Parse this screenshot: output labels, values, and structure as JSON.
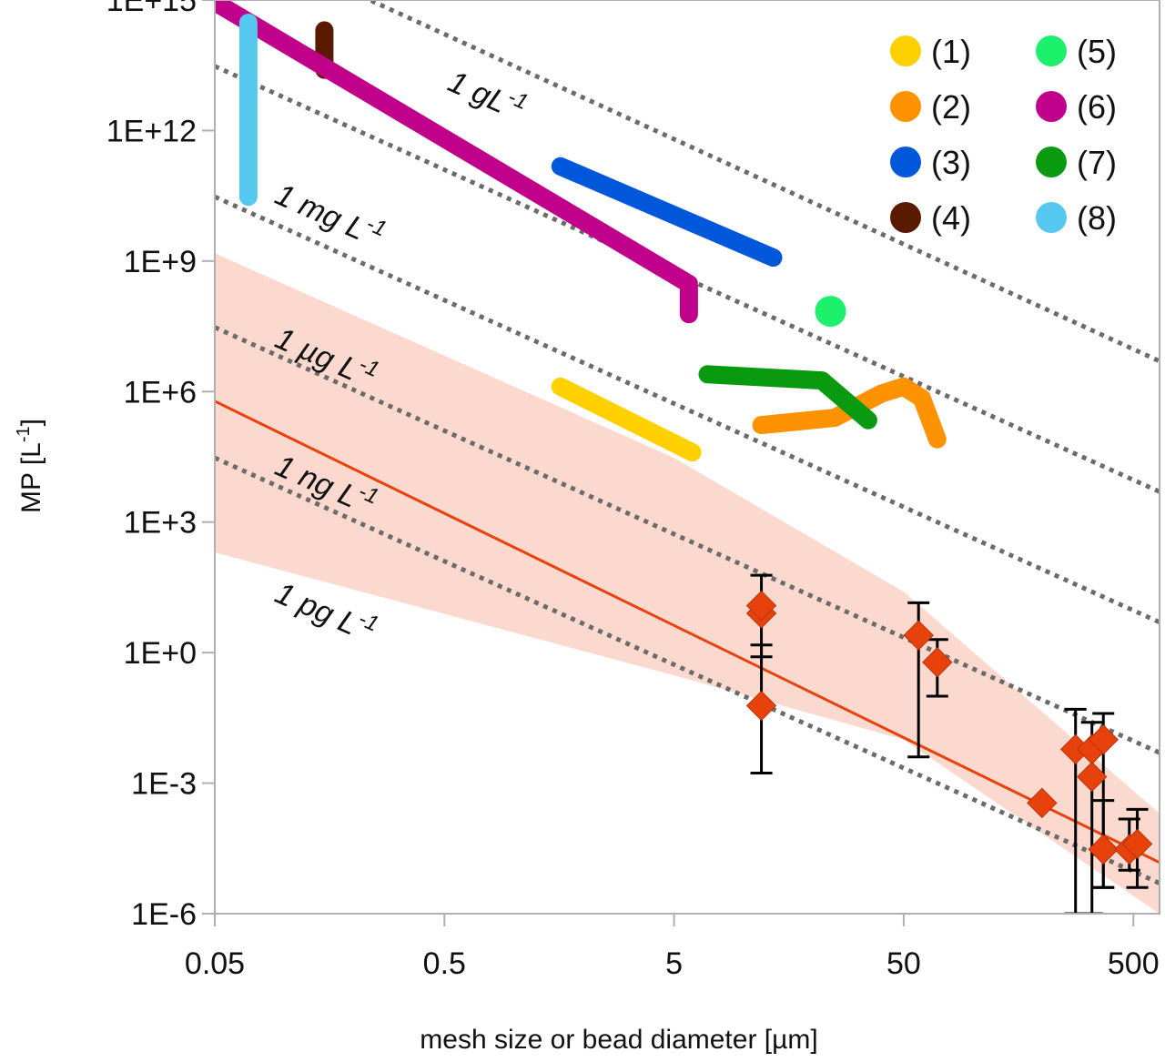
{
  "chart_data": {
    "type": "line",
    "title": "",
    "xlabel": "mesh size or bead diameter [µm]",
    "ylabel": "MP  [L",
    "ylabel_sup": "-1",
    "ylabel_end": "]",
    "x_scale": "log",
    "y_scale": "log",
    "xlim": [
      0.05,
      650
    ],
    "ylim": [
      1e-06,
      1000000000000000.0
    ],
    "x_ticks": [
      0.05,
      0.5,
      5,
      50,
      500
    ],
    "x_tick_labels": [
      "0.05",
      "0.5",
      "5",
      "50",
      "500"
    ],
    "y_ticks": [
      1e-06,
      0.001,
      1,
      1000.0,
      1000000.0,
      1000000000.0,
      1000000000000.0,
      1000000000000000.0
    ],
    "y_tick_labels": [
      "1E-6",
      "1E-3",
      "1E+0",
      "1E+3",
      "1E+6",
      "1E+9",
      "1E+12",
      "1E+15"
    ],
    "grid": false,
    "legend_position": "top-right",
    "series": [
      {
        "name": "(1)",
        "color": "#FFD000",
        "x": [
          1.6,
          6
        ],
        "y": [
          1300000.0,
          40000.0
        ]
      },
      {
        "name": "(2)",
        "color": "#FF9200",
        "x": [
          12,
          25,
          40,
          50,
          60,
          70
        ],
        "y": [
          170000.0,
          250000.0,
          900000.0,
          1300000.0,
          700000.0,
          80000.0
        ]
      },
      {
        "name": "(3)",
        "color": "#0057D9",
        "x": [
          1.6,
          13.5
        ],
        "y": [
          150000000000.0,
          1200000000.0
        ]
      },
      {
        "name": "(4)",
        "color": "#5A1A00",
        "x": [
          0.15,
          0.15
        ],
        "y": [
          200000000000000.0,
          25000000000000.0
        ]
      },
      {
        "name": "(5)",
        "color": "#1DF06B",
        "x": [
          24
        ],
        "y": [
          70000000.0
        ]
      },
      {
        "name": "(6)",
        "color": "#C0008A",
        "x": [
          0.05,
          5.8,
          5.8
        ],
        "y": [
          900000000000000.0,
          300000000.0,
          60000000.0
        ]
      },
      {
        "name": "(7)",
        "color": "#0A9A10",
        "x": [
          7,
          22,
          35
        ],
        "y": [
          2500000.0,
          1800000.0,
          220000.0
        ]
      },
      {
        "name": "(8)",
        "color": "#56C8F0",
        "x": [
          0.07,
          0.07
        ],
        "y": [
          300000000000000.0,
          30000000000.0
        ]
      }
    ],
    "measurements": [
      {
        "x": 12,
        "y": 8,
        "y_err_low": 0.8,
        "y_err_high": 60
      },
      {
        "x": 12,
        "y": 12
      },
      {
        "x": 12,
        "y": 0.06,
        "y_err_low": 0.0017,
        "y_err_high": 1.5
      },
      {
        "x": 58,
        "y": 2.5,
        "y_err_low": 0.004,
        "y_err_high": 14
      },
      {
        "x": 70,
        "y": 0.6,
        "y_err_low": 0.1,
        "y_err_high": 2
      },
      {
        "x": 200,
        "y": 0.00035
      },
      {
        "x": 280,
        "y": 0.006,
        "y_err_low": 1e-06,
        "y_err_high": 0.05
      },
      {
        "x": 330,
        "y": 0.006,
        "y_err_low": 1e-06,
        "y_err_high": 0.025
      },
      {
        "x": 330,
        "y": 0.0014
      },
      {
        "x": 370,
        "y": 0.01,
        "y_err_low": 4e-06,
        "y_err_high": 0.04
      },
      {
        "x": 370,
        "y": 3e-05,
        "y_err_low": 4e-06,
        "y_err_high": 0.0004
      },
      {
        "x": 480,
        "y": 3e-05,
        "y_err_low": 1e-05,
        "y_err_high": 0.00015
      },
      {
        "x": 520,
        "y": 4e-05,
        "y_err_low": 4e-06,
        "y_err_high": 0.00025
      }
    ],
    "measurement_color": "#E8420C",
    "fit": {
      "color": "#E8420C",
      "x": [
        0.05,
        650
      ],
      "y": [
        600000.0,
        1.5e-05
      ]
    },
    "confidence_band": {
      "color": "#FCD9CF",
      "x": [
        0.05,
        5,
        50,
        650
      ],
      "upper": [
        1500000000.0,
        30000.0,
        25,
        0.0002
      ],
      "lower": [
        200.0,
        0.3,
        0.01,
        1e-06
      ]
    },
    "iso_mass_lines": [
      {
        "label": "1 gL",
        "sup": "-1",
        "x": [
          0.2,
          650
        ],
        "y": [
          1500000000000000.0,
          5000000.0
        ]
      },
      {
        "label": "1 mg L",
        "sup": "-1",
        "x": [
          0.05,
          650
        ],
        "y": [
          30000000000000.0,
          5000.0
        ]
      },
      {
        "label": "1 µg L",
        "sup": "-1",
        "x": [
          0.05,
          650
        ],
        "y": [
          30000000000.0,
          5
        ]
      },
      {
        "label": "1 ng L",
        "sup": "-1",
        "x": [
          0.05,
          650
        ],
        "y": [
          30000000.0,
          0.005
        ]
      },
      {
        "label": "1 pg L",
        "sup": "-1",
        "x": [
          0.05,
          650
        ],
        "y": [
          30000.0,
          5e-06
        ]
      }
    ]
  }
}
